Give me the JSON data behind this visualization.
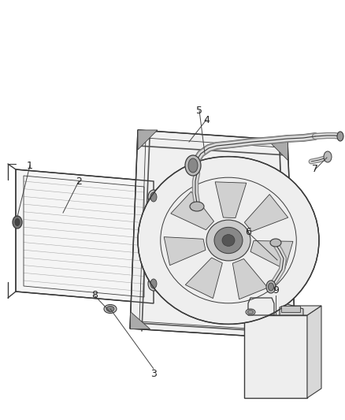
{
  "bg_color": "#ffffff",
  "line_color": "#3a3a3a",
  "fig_width": 4.38,
  "fig_height": 5.33,
  "dpi": 100
}
